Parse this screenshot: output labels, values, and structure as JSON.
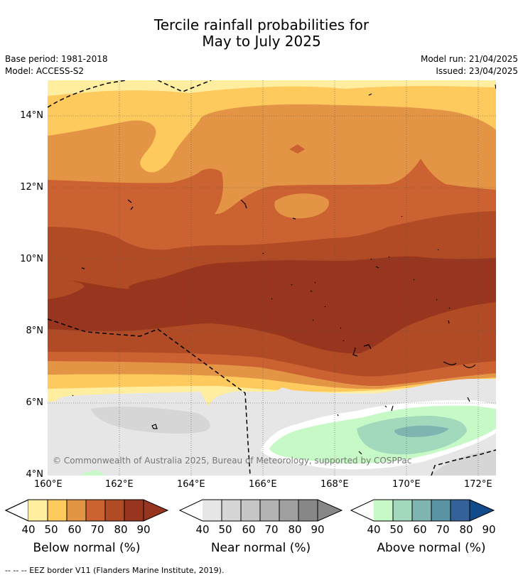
{
  "title": {
    "line1": "Tercile rainfall probabilities for",
    "line2": "May to July 2025"
  },
  "meta": {
    "base_period": "Base period: 1981-2018",
    "model": "Model: ACCESS-S2",
    "model_run": "Model run: 21/04/2025",
    "issued": "Issued: 23/04/2025"
  },
  "axes": {
    "y_ticks": [
      "14°N",
      "12°N",
      "10°N",
      "8°N",
      "6°N",
      "4°N"
    ],
    "x_ticks": [
      "160°E",
      "162°E",
      "164°E",
      "166°E",
      "168°E",
      "170°E",
      "172°E"
    ]
  },
  "copyright": "© Commonwealth of Australia 2025, Bureau of Meteorology, supported by COSPPac",
  "colorbars": [
    {
      "label": "Below normal (%)",
      "ticks": [
        "40",
        "50",
        "60",
        "70",
        "80",
        "90"
      ],
      "colors": [
        "#ffeda0",
        "#fec95d",
        "#e39445",
        "#cc6231",
        "#b04b25",
        "#98351e"
      ]
    },
    {
      "label": "Near normal (%)",
      "ticks": [
        "40",
        "50",
        "60",
        "70",
        "80",
        "90"
      ],
      "colors": [
        "#e6e6e6",
        "#d6d6d6",
        "#c6c6c6",
        "#b3b3b3",
        "#a0a0a0",
        "#878787"
      ]
    },
    {
      "label": "Above normal (%)",
      "ticks": [
        "40",
        "50",
        "60",
        "70",
        "80",
        "90"
      ],
      "colors": [
        "#c7f9c7",
        "#a2d9bd",
        "#7fb5b0",
        "#5a93a4",
        "#33629a",
        "#124b8b"
      ]
    }
  ],
  "footnote": "--  --  -- EEZ border V11 (Flanders Marine Institute, 2019).",
  "colors": {
    "below_40": "#ffeda0",
    "below_50": "#fec95d",
    "below_60": "#e39445",
    "below_70": "#cc6231",
    "below_80": "#b04b25",
    "below_90": "#98351e",
    "near_40": "#e6e6e6",
    "near_50": "#d6d6d6",
    "above_40": "#c7f9c7",
    "above_50": "#a2d9bd",
    "above_60": "#7fb5b0"
  }
}
